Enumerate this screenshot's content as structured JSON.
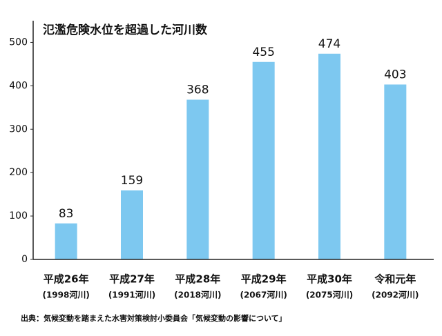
{
  "chart_data": {
    "type": "bar",
    "title": "氾濫危険水位を超過した河川数",
    "categories": [
      "平成26年",
      "平成27年",
      "平成28年",
      "平成29年",
      "平成30年",
      "令和元年"
    ],
    "subcategories": [
      "(1998河川)",
      "(1991河川)",
      "(2018河川)",
      "(2067河川)",
      "(2075河川)",
      "(2092河川)"
    ],
    "values": [
      83,
      159,
      368,
      455,
      474,
      403
    ],
    "color": "#7dc8f0",
    "ylim": [
      0,
      550
    ],
    "yticks": [
      0,
      100,
      200,
      300,
      400,
      500
    ],
    "grid": false,
    "source": "出典：気候変動を踏まえた水害対策検討小委員会「気候変動の影響について」"
  }
}
